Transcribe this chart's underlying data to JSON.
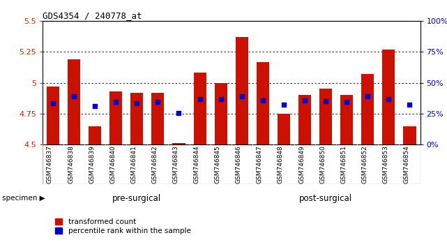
{
  "title": "GDS4354 / 240778_at",
  "samples": [
    "GSM746837",
    "GSM746838",
    "GSM746839",
    "GSM746840",
    "GSM746841",
    "GSM746842",
    "GSM746843",
    "GSM746844",
    "GSM746845",
    "GSM746846",
    "GSM746847",
    "GSM746848",
    "GSM746849",
    "GSM746850",
    "GSM746851",
    "GSM746852",
    "GSM746853",
    "GSM746854"
  ],
  "bar_values": [
    4.97,
    5.19,
    4.65,
    4.93,
    4.92,
    4.92,
    4.51,
    5.08,
    5.0,
    5.37,
    5.17,
    4.75,
    4.9,
    4.95,
    4.9,
    5.07,
    5.27,
    4.65
  ],
  "percentile_values": [
    4.835,
    4.89,
    4.81,
    4.845,
    4.835,
    4.845,
    4.755,
    4.87,
    4.87,
    4.89,
    4.855,
    4.82,
    4.855,
    4.85,
    4.845,
    4.89,
    4.87,
    4.82
  ],
  "bar_color": "#cc1100",
  "dot_color": "#0000cc",
  "ylim_left": [
    4.5,
    5.5
  ],
  "ylim_right": [
    0,
    100
  ],
  "yticks_left": [
    4.5,
    4.75,
    5.0,
    5.25,
    5.5
  ],
  "yticks_right": [
    0,
    25,
    50,
    75,
    100
  ],
  "ytick_labels_left": [
    "4.5",
    "4.75",
    "5",
    "5.25",
    "5.5"
  ],
  "ytick_labels_right": [
    "0%",
    "25%",
    "50%",
    "75%",
    "100%"
  ],
  "pre_surgical_count": 9,
  "post_surgical_count": 9,
  "group_labels": [
    "pre-surgical",
    "post-surgical"
  ],
  "specimen_label": "specimen",
  "legend_labels": [
    "transformed count",
    "percentile rank within the sample"
  ],
  "background_color": "#ffffff",
  "bar_width": 0.6,
  "bottom_band_color_pre": "#ccffcc",
  "bottom_band_color_post": "#66dd66",
  "tick_label_area_color": "#c8c8c8"
}
